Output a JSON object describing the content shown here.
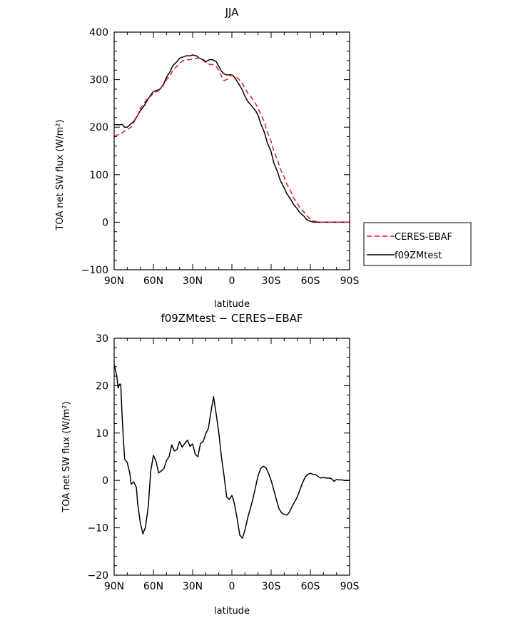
{
  "chart_data": [
    {
      "type": "line",
      "title": "JJA",
      "xlabel": "latitude",
      "ylabel": "TOA net SW flux (W/m²)",
      "ylim": [
        -100,
        400
      ],
      "xlim": [
        90,
        -90
      ],
      "x_ticks": [
        90,
        60,
        30,
        0,
        -30,
        -60,
        -90
      ],
      "x_tick_labels": [
        "90N",
        "60N",
        "30N",
        "0",
        "30S",
        "60S",
        "90S"
      ],
      "y_ticks": [
        -100,
        0,
        100,
        200,
        300,
        400
      ],
      "y_tick_labels": [
        "−100",
        "0",
        "100",
        "200",
        "300",
        "400"
      ],
      "legend_position": "outside-right",
      "series": [
        {
          "name": "CERES-EBAF",
          "color": "#e41a1c",
          "dash": "dashed",
          "x": [
            90,
            87,
            85,
            83,
            80,
            77,
            75,
            72,
            70,
            67,
            65,
            62,
            60,
            57,
            55,
            52,
            50,
            47,
            45,
            42,
            40,
            37,
            35,
            32,
            30,
            27,
            25,
            22,
            20,
            17,
            15,
            12,
            10,
            8,
            6,
            4,
            2,
            0,
            -2,
            -5,
            -8,
            -10,
            -12,
            -15,
            -18,
            -20,
            -22,
            -25,
            -27,
            -30,
            -32,
            -35,
            -37,
            -40,
            -42,
            -45,
            -47,
            -50,
            -52,
            -55,
            -57,
            -60,
            -62,
            -65,
            -67,
            -70,
            -72,
            -75,
            -77,
            -80,
            -85,
            -90
          ],
          "y": [
            182,
            184,
            185,
            190,
            195,
            200,
            210,
            225,
            240,
            250,
            260,
            265,
            272,
            275,
            280,
            290,
            300,
            310,
            320,
            328,
            335,
            340,
            342,
            342,
            344,
            345,
            345,
            340,
            336,
            332,
            332,
            328,
            320,
            308,
            298,
            300,
            305,
            310,
            308,
            302,
            292,
            282,
            272,
            262,
            250,
            240,
            228,
            210,
            190,
            170,
            150,
            130,
            112,
            95,
            80,
            65,
            52,
            40,
            30,
            22,
            14,
            7,
            3,
            1,
            0.5,
            0,
            0,
            0,
            0,
            0,
            0,
            0
          ]
        },
        {
          "name": "f09ZMtest",
          "color": "#000000",
          "dash": "solid",
          "x": [
            90,
            88,
            86,
            84,
            82,
            80,
            78,
            75,
            72,
            70,
            67,
            65,
            62,
            60,
            57,
            55,
            52,
            50,
            47,
            45,
            42,
            40,
            37,
            35,
            32,
            30,
            27,
            25,
            22,
            20,
            17,
            15,
            12,
            10,
            8,
            6,
            4,
            2,
            0,
            -2,
            -5,
            -8,
            -10,
            -12,
            -15,
            -18,
            -20,
            -22,
            -25,
            -27,
            -30,
            -32,
            -35,
            -37,
            -40,
            -42,
            -45,
            -47,
            -50,
            -52,
            -55,
            -57,
            -60,
            -62,
            -65,
            -67,
            -70,
            -72,
            -75,
            -77,
            -80,
            -85,
            -90
          ],
          "y": [
            206,
            205,
            205,
            206,
            200,
            200,
            205,
            212,
            225,
            235,
            245,
            255,
            268,
            275,
            278,
            280,
            292,
            305,
            318,
            330,
            338,
            345,
            348,
            350,
            350,
            352,
            350,
            345,
            342,
            338,
            342,
            342,
            338,
            328,
            318,
            312,
            310,
            310,
            310,
            305,
            292,
            278,
            265,
            255,
            245,
            235,
            225,
            208,
            188,
            168,
            148,
            125,
            105,
            88,
            72,
            60,
            48,
            38,
            28,
            20,
            13,
            6,
            2,
            0.5,
            0,
            0,
            0,
            0,
            0,
            0,
            0,
            0,
            0
          ]
        }
      ]
    },
    {
      "type": "line",
      "title": "f09ZMtest − CERES−EBAF",
      "xlabel": "latitude",
      "ylabel": "TOA net SW flux (W/m²)",
      "ylim": [
        -20,
        30
      ],
      "xlim": [
        90,
        -90
      ],
      "x_ticks": [
        90,
        60,
        30,
        0,
        -30,
        -60,
        -90
      ],
      "x_tick_labels": [
        "90N",
        "60N",
        "30N",
        "0",
        "30S",
        "60S",
        "90S"
      ],
      "y_ticks": [
        -20,
        -10,
        0,
        10,
        20,
        30
      ],
      "y_tick_labels": [
        "−20",
        "−10",
        "0",
        "10",
        "20",
        "30"
      ],
      "series": [
        {
          "color": "#000000",
          "x": [
            90,
            88,
            87,
            86,
            85,
            84,
            83,
            82,
            80,
            78,
            77,
            75,
            73,
            72,
            70,
            68,
            66,
            64,
            62,
            60,
            58,
            56,
            54,
            52,
            50,
            48,
            46,
            44,
            42,
            40,
            38,
            36,
            34,
            32,
            30,
            28,
            26,
            24,
            22,
            20,
            18,
            16,
            14,
            12,
            10,
            8,
            6,
            4,
            2,
            0,
            -1,
            -2,
            -4,
            -6,
            -8,
            -10,
            -12,
            -14,
            -16,
            -18,
            -20,
            -22,
            -24,
            -26,
            -28,
            -30,
            -32,
            -34,
            -36,
            -38,
            -40,
            -42,
            -44,
            -46,
            -48,
            -50,
            -52,
            -54,
            -56,
            -58,
            -60,
            -62,
            -64,
            -66,
            -68,
            -70,
            -72,
            -74,
            -76,
            -78,
            -80,
            -82,
            -84,
            -86,
            -88,
            -90
          ],
          "y": [
            24.5,
            22,
            19.5,
            20.3,
            20.3,
            14,
            9,
            4.5,
            3.8,
            1.5,
            -0.8,
            -0.3,
            -1.5,
            -5,
            -9,
            -11.3,
            -9.8,
            -5.6,
            2,
            5.3,
            4,
            1.6,
            2,
            2.5,
            4.2,
            5,
            7.5,
            6.2,
            6.5,
            8.2,
            7,
            7.8,
            8.5,
            7.2,
            7.7,
            5.5,
            5,
            7.8,
            8.2,
            9.8,
            11,
            14.5,
            17.7,
            14,
            10,
            5,
            1,
            -3.5,
            -4,
            -3.2,
            -4,
            -5,
            -8,
            -11.5,
            -12.2,
            -10.5,
            -8,
            -6,
            -4,
            -1.5,
            1,
            2.5,
            3,
            2.7,
            1.5,
            0,
            -2,
            -4,
            -6,
            -6.8,
            -7.2,
            -7.3,
            -6.7,
            -5.5,
            -4.5,
            -3.5,
            -2,
            -0.5,
            0.7,
            1.3,
            1.5,
            1.3,
            1.2,
            0.8,
            0.5,
            0.6,
            0.5,
            0.5,
            0.4,
            -0.2,
            0.2,
            0.1,
            0.1,
            0,
            0,
            0
          ]
        }
      ]
    }
  ]
}
